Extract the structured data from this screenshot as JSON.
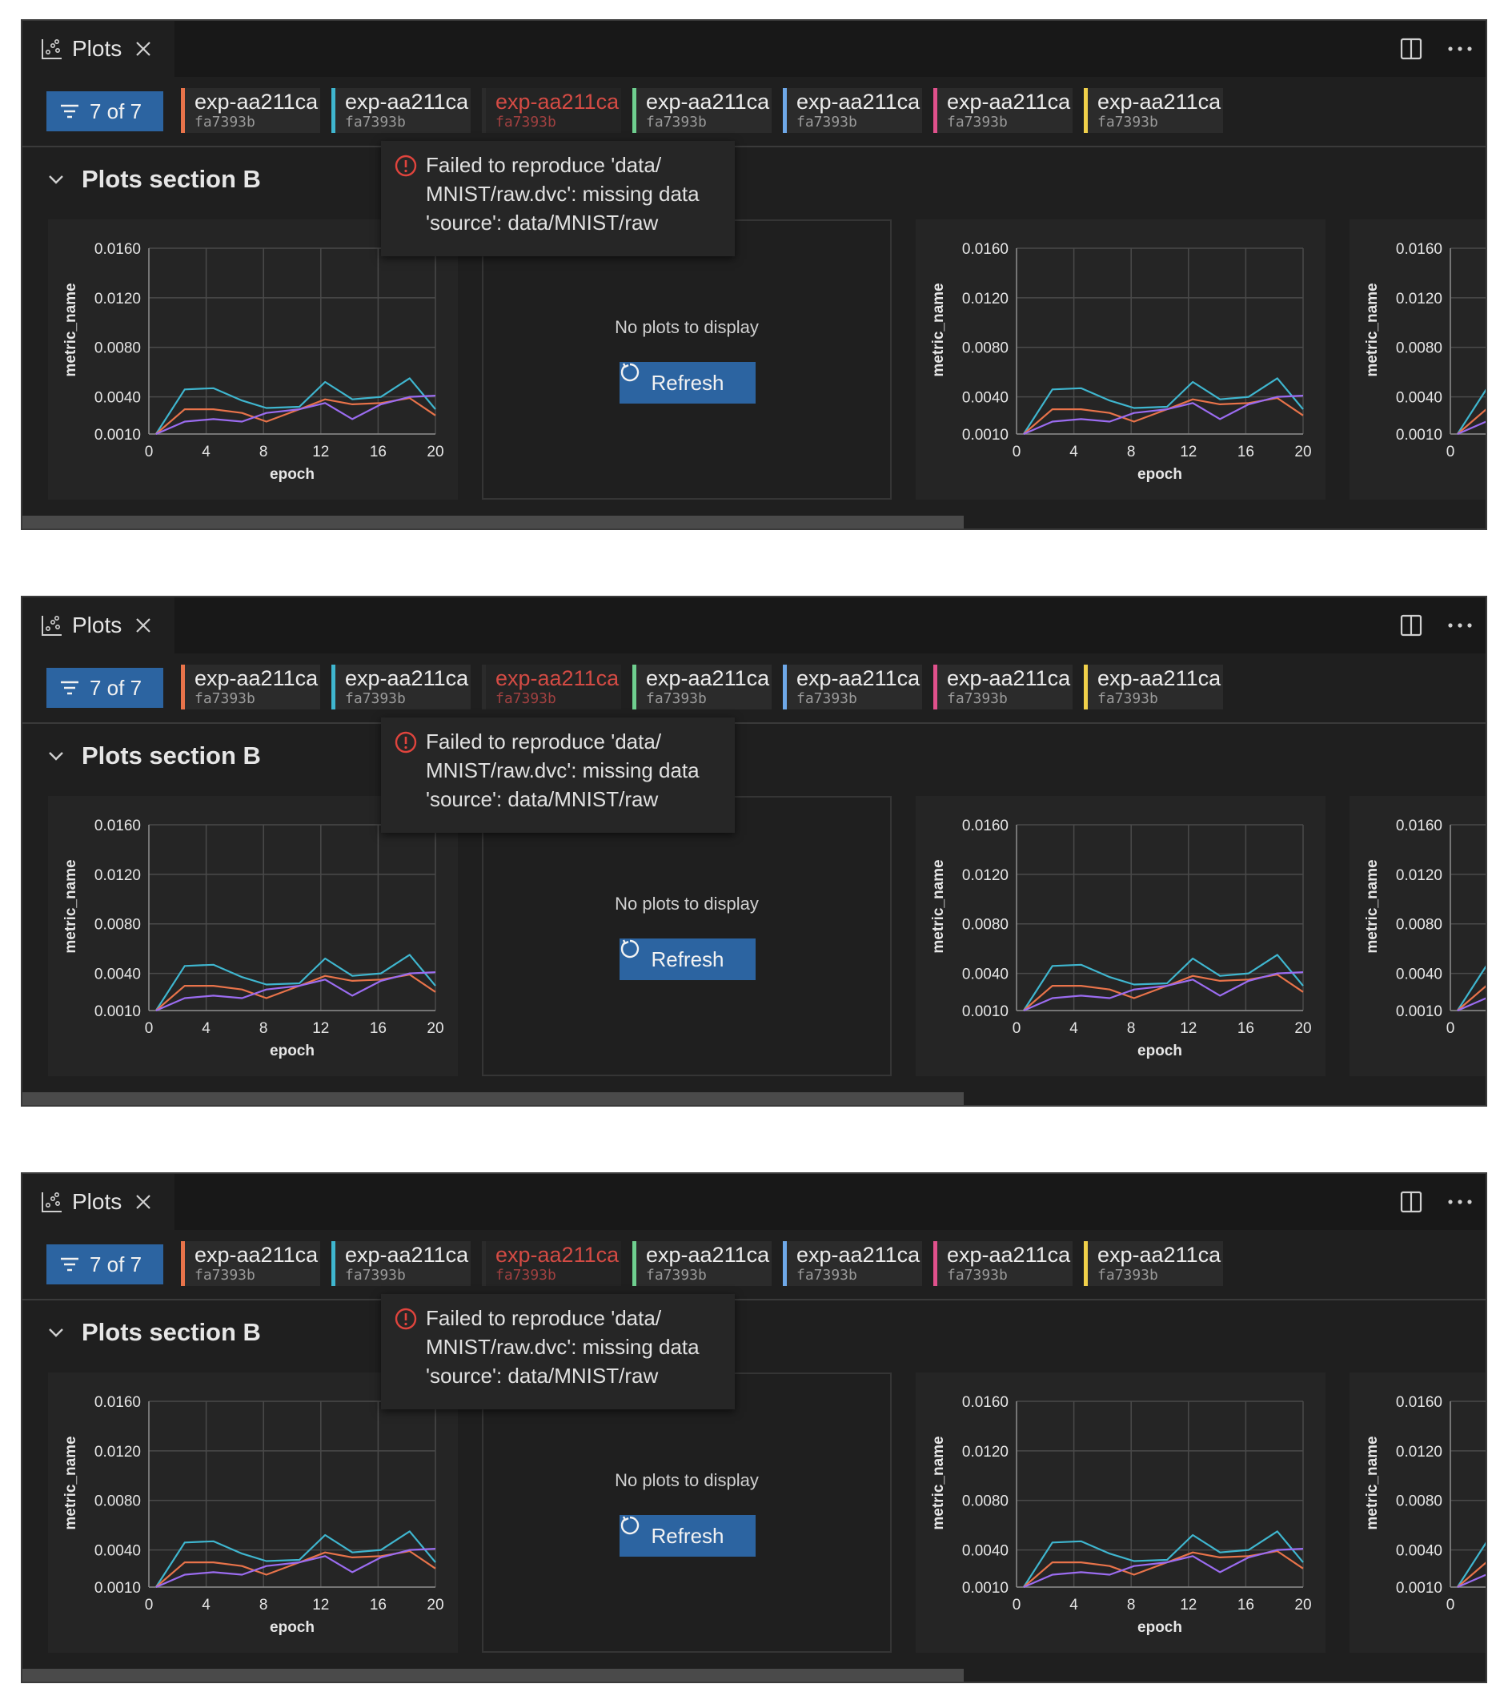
{
  "panel": {
    "tab_title": "Plots",
    "filter_label": "7 of 7",
    "experiments": [
      {
        "name": "exp-aa211ca",
        "hash": "fa7393b",
        "color": "#e8734a",
        "error": false
      },
      {
        "name": "exp-aa211ca",
        "hash": "fa7393b",
        "color": "#3fb6cf",
        "error": false
      },
      {
        "name": "exp-aa211ca",
        "hash": "fa7393b",
        "color": "#2b2b2b",
        "error": true
      },
      {
        "name": "exp-aa211ca",
        "hash": "fa7393b",
        "color": "#6fcf8f",
        "error": false
      },
      {
        "name": "exp-aa211ca",
        "hash": "fa7393b",
        "color": "#6ea8e8",
        "error": false
      },
      {
        "name": "exp-aa211ca",
        "hash": "fa7393b",
        "color": "#e0518c",
        "error": false
      },
      {
        "name": "exp-aa211ca",
        "hash": "fa7393b",
        "color": "#f0d04a",
        "error": false
      }
    ],
    "section_title": "Plots section B",
    "tooltip": "Failed to reproduce 'data/ MNIST/raw.dvc': missing data 'source': data/MNIST/raw",
    "empty_message": "No plots to display",
    "refresh_label": "Refresh"
  },
  "chart_data": {
    "type": "line",
    "xlabel": "epoch",
    "ylabel": "metric_name",
    "xlim": [
      0,
      20
    ],
    "ylim": [
      0.001,
      0.016
    ],
    "x_ticks": [
      "0",
      "4",
      "8",
      "12",
      "16",
      "20"
    ],
    "y_ticks": [
      "0.0160",
      "0.0120",
      "0.0080",
      "0.0040",
      "0.0010"
    ],
    "series": [
      {
        "name": "cyan",
        "color": "#3fb6cf",
        "x": [
          0.5,
          2.5,
          4.5,
          6.5,
          8.2,
          10.5,
          12.3,
          14.2,
          16.2,
          18.2,
          20
        ],
        "y": [
          0.001,
          0.0046,
          0.0047,
          0.0037,
          0.0031,
          0.0032,
          0.0052,
          0.0038,
          0.004,
          0.0055,
          0.003
        ]
      },
      {
        "name": "orange",
        "color": "#e8734a",
        "x": [
          0.5,
          2.5,
          4.5,
          6.5,
          8.2,
          10.5,
          12.3,
          14.2,
          16.2,
          18.2,
          20
        ],
        "y": [
          0.001,
          0.003,
          0.003,
          0.0027,
          0.002,
          0.003,
          0.0038,
          0.0034,
          0.0035,
          0.0039,
          0.0025
        ]
      },
      {
        "name": "purple",
        "color": "#9b6cf0",
        "x": [
          0.5,
          2.5,
          4.5,
          6.5,
          8.2,
          10.5,
          12.3,
          14.2,
          16.2,
          18.2,
          20
        ],
        "y": [
          0.001,
          0.002,
          0.0022,
          0.002,
          0.0027,
          0.003,
          0.0035,
          0.0022,
          0.0034,
          0.004,
          0.0041
        ]
      }
    ]
  }
}
